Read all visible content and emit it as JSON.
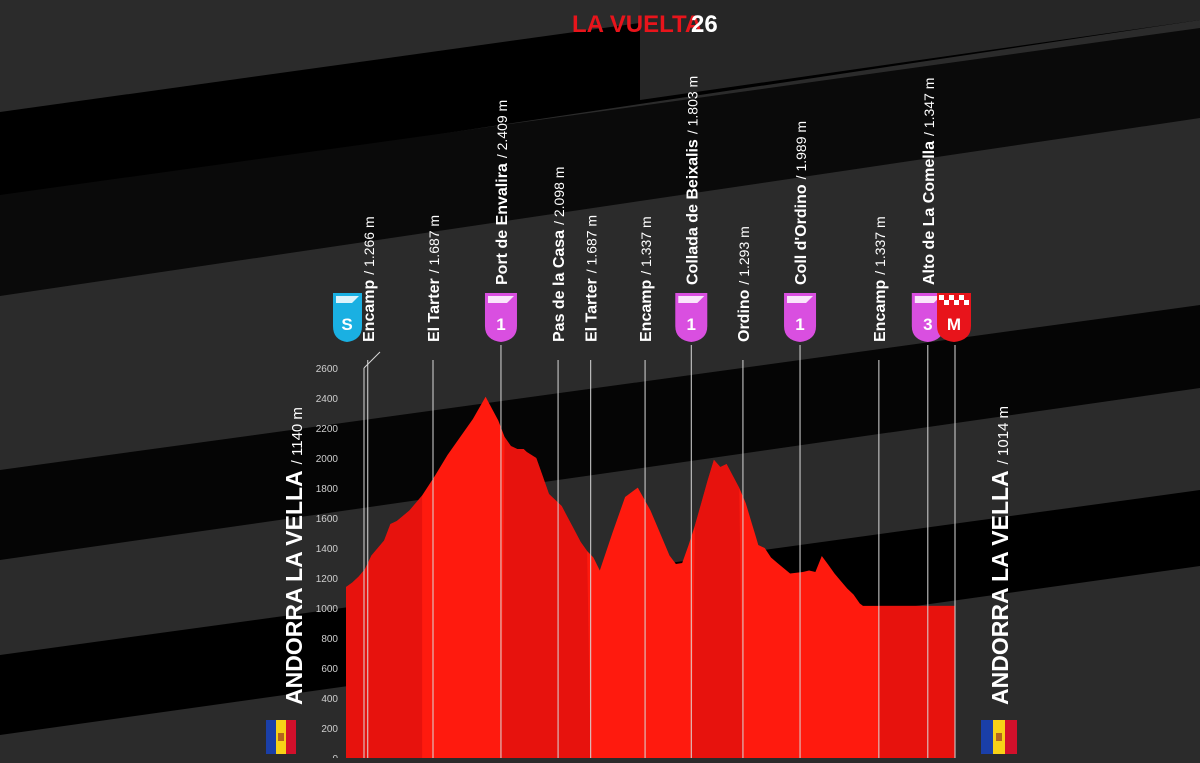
{
  "header": {
    "brand": "LA VUELTA",
    "edition": "26"
  },
  "colors": {
    "profile_red": "#ff1a0e",
    "profile_shade": "#d40d0c",
    "category_pink": "#d94fe0",
    "start_cyan": "#1ab0e2",
    "finish_red": "#e8141b",
    "background": "#2b2b2b"
  },
  "start": {
    "name": "ANDORRA LA VELLA",
    "altitude": "/ 1140 m",
    "badge": "S",
    "flag": "andorra-flag-icon"
  },
  "finish": {
    "name": "ANDORRA LA VELLA",
    "altitude": "/ 1014 m",
    "badge": "M",
    "flag": "andorra-flag-icon"
  },
  "chart_data": {
    "type": "area",
    "title": "",
    "xlabel": "",
    "ylabel": "",
    "ylim": [
      0,
      2600
    ],
    "yticks": [
      "2600",
      "2400",
      "2200",
      "2000",
      "1800",
      "1600",
      "1400",
      "1200",
      "1000",
      "800",
      "600",
      "400",
      "200",
      "0"
    ],
    "grid": false,
    "x": [
      0,
      1,
      2,
      3,
      4,
      6,
      7,
      8,
      10,
      12,
      14,
      16,
      18,
      20,
      22,
      24,
      25,
      26,
      27,
      28,
      28.5,
      30,
      31,
      32,
      34,
      35,
      36,
      37,
      38,
      39,
      40,
      42,
      44,
      46,
      48,
      50,
      51,
      52,
      53,
      54,
      55,
      56,
      57,
      58,
      59,
      60,
      62,
      63,
      64,
      64.5,
      65,
      66,
      67,
      68,
      70,
      72,
      73,
      74,
      75,
      76,
      77,
      78,
      79,
      80,
      81,
      81.5,
      82,
      83,
      84,
      85,
      86,
      87,
      88,
      89,
      90,
      91,
      92,
      93,
      94,
      95,
      96
    ],
    "elevation": [
      1140,
      1170,
      1210,
      1260,
      1350,
      1450,
      1560,
      1580,
      1650,
      1750,
      1880,
      2020,
      2140,
      2260,
      2409,
      2250,
      2140,
      2080,
      2060,
      2060,
      2040,
      2000,
      1880,
      1760,
      1680,
      1600,
      1520,
      1440,
      1380,
      1337,
      1250,
      1500,
      1740,
      1803,
      1650,
      1450,
      1350,
      1293,
      1300,
      1420,
      1550,
      1700,
      1850,
      1989,
      1940,
      1960,
      1800,
      1700,
      1560,
      1490,
      1420,
      1400,
      1337,
      1300,
      1230,
      1240,
      1250,
      1240,
      1347,
      1290,
      1230,
      1180,
      1130,
      1090,
      1030,
      1014,
      1014,
      1014,
      1014,
      1014,
      1014,
      1014,
      1014,
      1014,
      1014,
      1014,
      1014,
      1014,
      1014,
      1014,
      1014
    ],
    "points": [
      {
        "name": "Encamp",
        "alt": "/ 1.266 m",
        "km": 4,
        "type": "point"
      },
      {
        "name": "El Tarter",
        "alt": "/ 1.687 m",
        "km": 16,
        "type": "point"
      },
      {
        "name": "Port de Envalira",
        "alt": "/ 2.409 m",
        "km": 28.5,
        "type": "climb",
        "category": "1"
      },
      {
        "name": "Pas de la Casa",
        "alt": "/ 2.098 m",
        "km": 39,
        "type": "point"
      },
      {
        "name": "El Tarter",
        "alt": "/ 1.687 m",
        "km": 45,
        "type": "point"
      },
      {
        "name": "Encamp",
        "alt": "/ 1.337 m",
        "km": 55,
        "type": "point"
      },
      {
        "name": "Collada de Beixalis",
        "alt": "/ 1.803 m",
        "km": 63.5,
        "type": "climb",
        "category": "1"
      },
      {
        "name": "Ordino",
        "alt": "/ 1.293 m",
        "km": 73,
        "type": "point"
      },
      {
        "name": "Coll d'Ordino",
        "alt": "/ 1.989 m",
        "km": 83.5,
        "type": "climb",
        "category": "1"
      },
      {
        "name": "Encamp",
        "alt": "/ 1.337 m",
        "km": 98,
        "type": "point"
      },
      {
        "name": "Alto de La Comella",
        "alt": "/ 1.347 m",
        "km": 107,
        "type": "climb",
        "category": "3"
      }
    ]
  }
}
